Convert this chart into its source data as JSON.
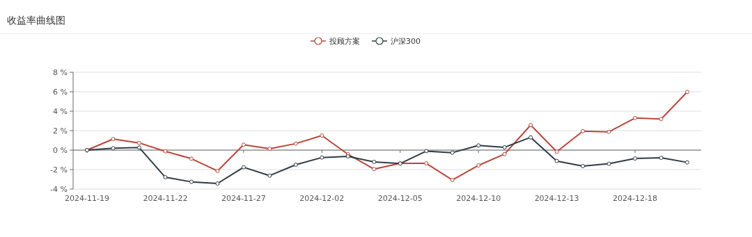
{
  "chart_data": {
    "type": "line",
    "title": "收益率曲线图",
    "categories": [
      "2024-11-19",
      null,
      null,
      "2024-11-22",
      null,
      null,
      "2024-11-27",
      null,
      null,
      "2024-12-02",
      null,
      null,
      "2024-12-05",
      null,
      null,
      "2024-12-10",
      null,
      null,
      "2024-12-13",
      null,
      null,
      "2024-12-18",
      null,
      null
    ],
    "series": [
      {
        "name": "投顾方案",
        "color": "#b5473a",
        "values": [
          0,
          1.14,
          0.74,
          -0.12,
          -0.88,
          -2.14,
          0.55,
          0.14,
          0.67,
          1.5,
          -0.43,
          -1.95,
          -1.36,
          -1.36,
          -3.07,
          -1.57,
          -0.4,
          2.57,
          -0.16,
          1.95,
          1.88,
          3.3,
          3.2,
          5.98
        ]
      },
      {
        "name": "沪深300",
        "color": "#2f3b45",
        "values": [
          0,
          0.19,
          0.26,
          -2.79,
          -3.26,
          -3.43,
          -1.76,
          -2.62,
          -1.5,
          -0.76,
          -0.64,
          -1.21,
          -1.38,
          -0.1,
          -0.26,
          0.48,
          0.29,
          1.31,
          -1.12,
          -1.64,
          -1.4,
          -0.86,
          -0.79,
          -1.26
        ]
      }
    ],
    "ylim": [
      -4,
      8
    ],
    "yticks": [
      {
        "value": -4,
        "label": "-4 %"
      },
      {
        "value": -2,
        "label": "-2 %"
      },
      {
        "value": 0,
        "label": "0 %"
      },
      {
        "value": 2,
        "label": "2 %"
      },
      {
        "value": 4,
        "label": "4 %"
      },
      {
        "value": 6,
        "label": "6 %"
      },
      {
        "value": 8,
        "label": "8 %"
      }
    ],
    "grid": "y",
    "legend": "top",
    "marker": "circle",
    "line_style": "solid"
  }
}
